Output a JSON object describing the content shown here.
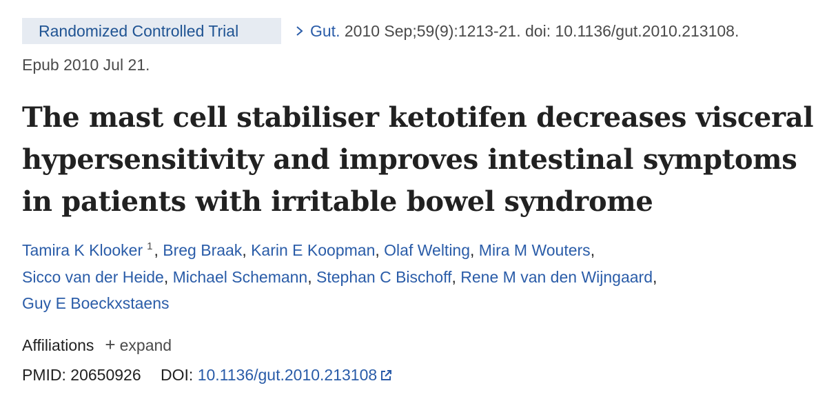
{
  "header": {
    "article_type": "Randomized Controlled Trial",
    "journal": "Gut.",
    "citation": " 2010 Sep;59(9):1213-21. doi: 10.1136/gut.2010.213108.",
    "epub": "Epub 2010 Jul 21."
  },
  "title": {
    "line1": "The mast cell stabiliser ketotifen decreases visceral",
    "line2": "hypersensitivity and improves intestinal symptoms",
    "line3": "in patients with irritable bowel syndrome"
  },
  "authors": [
    {
      "name": "Tamira K Klooker",
      "sup": "1"
    },
    {
      "name": "Breg Braak"
    },
    {
      "name": "Karin E Koopman"
    },
    {
      "name": "Olaf Welting"
    },
    {
      "name": "Mira M Wouters"
    },
    {
      "name": "Sicco van der Heide"
    },
    {
      "name": "Michael Schemann"
    },
    {
      "name": "Stephan C Bischoff"
    },
    {
      "name": "Rene M van den Wijngaard"
    },
    {
      "name": "Guy E Boeckxstaens"
    }
  ],
  "affiliations": {
    "label": "Affiliations",
    "plus": "+",
    "expand_label": "expand"
  },
  "identifiers": {
    "pmid_label": "PMID:",
    "pmid": "20650926",
    "doi_label": "DOI:",
    "doi": "10.1136/gut.2010.213108",
    "doi_icon": "external-link-icon"
  },
  "colors": {
    "link": "#2a5ca8",
    "badge_bg": "#e6ebf2",
    "badge_text": "#205493",
    "text": "#212121",
    "muted": "#4a4a4a"
  }
}
